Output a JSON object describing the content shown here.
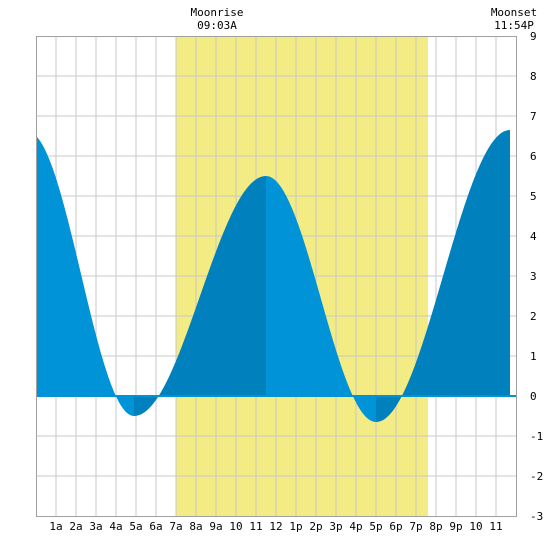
{
  "chart_data": {
    "type": "area",
    "title": "",
    "xlabel": "",
    "ylabel": "",
    "xlim": [
      0,
      24
    ],
    "ylim": [
      -3,
      9
    ],
    "y_ticks": [
      -3,
      -2,
      -1,
      0,
      1,
      2,
      3,
      4,
      5,
      6,
      7,
      8,
      9
    ],
    "x_tick_labels": [
      "1a",
      "2a",
      "3a",
      "4a",
      "5a",
      "6a",
      "7a",
      "8a",
      "9a",
      "10",
      "11",
      "12",
      "1p",
      "2p",
      "3p",
      "4p",
      "5p",
      "6p",
      "7p",
      "8p",
      "9p",
      "10",
      "11"
    ],
    "grid": true,
    "daylight": {
      "start_hour": 7.0,
      "end_hour": 19.6
    },
    "annotations": [
      {
        "label": "Moonrise",
        "time": "09:03A",
        "hour": 9.05
      },
      {
        "label": "Moonset",
        "time": "11:54P",
        "hour": 23.9
      }
    ],
    "tide_extrema": [
      {
        "hour": -0.4,
        "value": 6.6
      },
      {
        "hour": 4.9,
        "value": -0.5
      },
      {
        "hour": 11.5,
        "value": 5.5
      },
      {
        "hour": 17.0,
        "value": -0.65
      },
      {
        "hour": 23.7,
        "value": 6.65
      }
    ],
    "colors": {
      "daylight": "#f3ec84",
      "tide_light": "#0093d8",
      "tide_dark": "#0080bc",
      "grid": "#c8c8c8",
      "baseline": "#0093d8"
    }
  }
}
